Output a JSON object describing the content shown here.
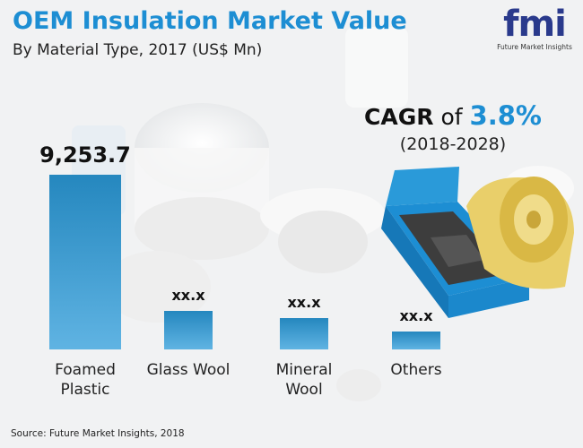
{
  "chart_data": {
    "type": "bar",
    "title": "OEM Insulation Market Value",
    "subtitle": "By Material Type, 2017 (US$ Mn)",
    "categories": [
      "Foamed Plastic",
      "Glass Wool",
      "Mineral Wool",
      "Others"
    ],
    "values": [
      9253.7,
      2040,
      1660,
      950
    ],
    "value_labels": [
      "9,253.7",
      "xx.x",
      "xx.x",
      "xx.x"
    ],
    "color": "#2a9ad9",
    "cagr": {
      "label": "CAGR",
      "connector": "of",
      "value": "3.8%",
      "period": "(2018-2028)"
    },
    "source": "Source: Future Market Insights, 2018"
  },
  "logo": {
    "mark": "fmi",
    "text": "Future Market Insights"
  }
}
